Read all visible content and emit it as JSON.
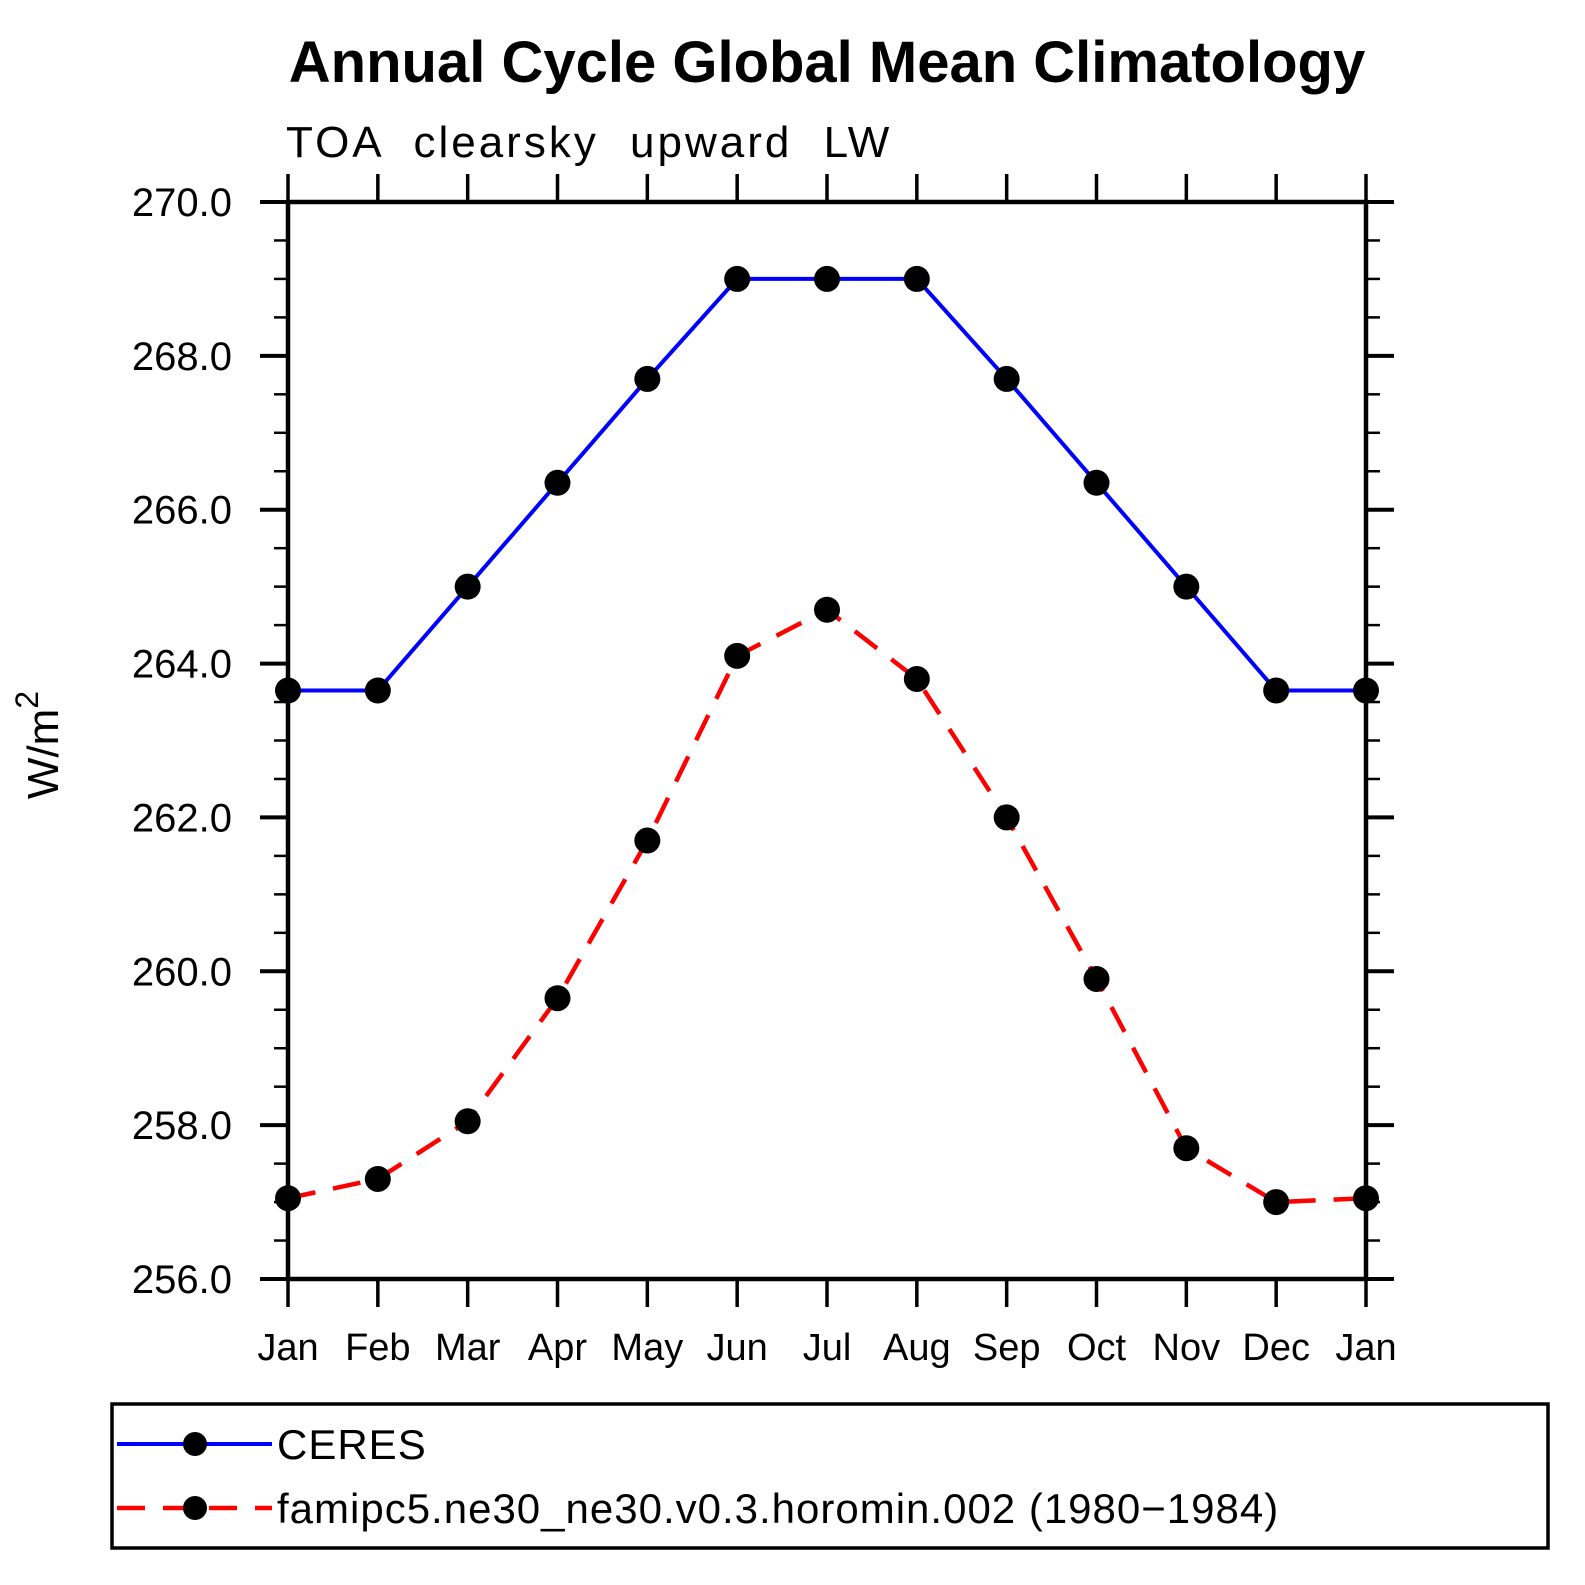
{
  "header": {
    "title": "Annual Cycle Global Mean Climatology",
    "subtitle": "TOA clearsky upward LW"
  },
  "chart_data": {
    "type": "line",
    "categories": [
      "Jan",
      "Feb",
      "Mar",
      "Apr",
      "May",
      "Jun",
      "Jul",
      "Aug",
      "Sep",
      "Oct",
      "Nov",
      "Dec",
      "Jan"
    ],
    "series": [
      {
        "name": "CERES",
        "color": "#0000ff",
        "line_style": "solid",
        "marker": "circle",
        "marker_color": "#000000",
        "values": [
          263.65,
          263.65,
          265.0,
          266.35,
          267.7,
          269.0,
          269.0,
          269.0,
          267.7,
          266.35,
          265.0,
          263.65,
          263.65
        ]
      },
      {
        "name": "famipc5.ne30_ne30.v0.3.horomin.002 (1980−1984)",
        "color": "#ff0000",
        "line_style": "dashed",
        "marker": "circle",
        "marker_color": "#000000",
        "values": [
          257.05,
          257.3,
          258.05,
          259.65,
          261.7,
          264.1,
          264.7,
          263.8,
          262.0,
          259.9,
          257.7,
          257.0,
          257.05
        ]
      }
    ],
    "xlabel": "",
    "ylabel": {
      "base": "W/m",
      "superscript": "2"
    },
    "ylim": [
      256.0,
      270.0
    ],
    "y_major_step": 2.0,
    "y_minor_step": 0.5,
    "y_tick_labels": [
      "256.0",
      "258.0",
      "260.0",
      "262.0",
      "264.0",
      "266.0",
      "268.0",
      "270.0"
    ],
    "grid": false,
    "legend_position": "bottom-left"
  },
  "colors": {
    "background": "#ffffff",
    "axis": "#000000",
    "ceres_line": "#0000ff",
    "model_line": "#ff0000",
    "marker": "#000000"
  }
}
